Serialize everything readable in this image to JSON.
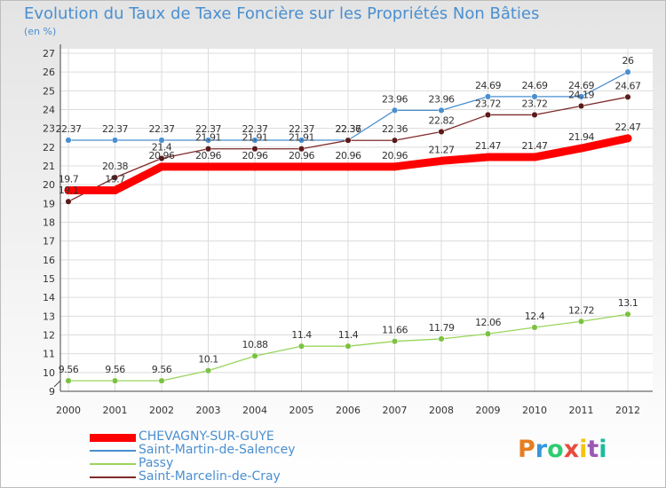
{
  "title": "Evolution du Taux de Taxe Foncière sur les Propriétés Non Bâties",
  "unit": "(en %)",
  "logo": {
    "text": "Proxiti",
    "letter_colors": [
      "#e67e22",
      "#3498db",
      "#2ecc71",
      "#e74c3c",
      "#f1c40f",
      "#9b59b6",
      "#1abc9c"
    ]
  },
  "chart_data": {
    "type": "line",
    "title": "Evolution du Taux de Taxe Foncière sur les Propriétés Non Bâties",
    "ylabel": "(en %)",
    "xlabel": "",
    "x": [
      "2000",
      "2001",
      "2002",
      "2003",
      "2004",
      "2005",
      "2006",
      "2007",
      "2008",
      "2009",
      "2010",
      "2011",
      "2012"
    ],
    "yticks": [
      9,
      10,
      11,
      12,
      13,
      14,
      15,
      16,
      17,
      18,
      19,
      20,
      21,
      22,
      23,
      24,
      25,
      26,
      27
    ],
    "ylim": [
      9,
      27
    ],
    "grid": true,
    "legend_position": "bottom-left",
    "series": [
      {
        "name": "Saint-Martin-de-Salencey",
        "color": "#4a8fd0",
        "marker": "#4a8fd0",
        "width": "thin",
        "values": [
          22.37,
          22.37,
          22.37,
          22.37,
          22.37,
          22.37,
          22.37,
          23.96,
          23.96,
          24.69,
          24.69,
          24.69,
          26
        ],
        "labels": [
          "22.37",
          "22.37",
          "22.37",
          "22.37",
          "22.37",
          "22.37",
          "22.37",
          "23.96",
          "23.96",
          "24.69",
          "24.69",
          "24.69",
          "26"
        ]
      },
      {
        "name": "Saint-Marcelin-de-Cray",
        "color": "#7f2a2a",
        "marker": "#5c1a1a",
        "width": "thin",
        "values": [
          19.1,
          20.38,
          21.4,
          21.91,
          21.91,
          21.91,
          22.36,
          22.36,
          22.82,
          23.72,
          23.72,
          24.19,
          24.67
        ],
        "labels": [
          "19.1",
          "20.38",
          "21.4",
          "21.91",
          "21.91",
          "21.91",
          "22.36",
          "22.36",
          "22.82",
          "23.72",
          "23.72",
          "24.19",
          "24.67"
        ]
      },
      {
        "name": "CHEVAGNY-SUR-GUYE",
        "color": "#ff0000",
        "marker": "#ff0000",
        "width": "thick",
        "values": [
          19.7,
          19.7,
          20.96,
          20.96,
          20.96,
          20.96,
          20.96,
          20.96,
          21.27,
          21.47,
          21.47,
          21.94,
          22.47
        ],
        "labels": [
          "19.7",
          "19.7",
          "20.96",
          "20.96",
          "20.96",
          "20.96",
          "20.96",
          "20.96",
          "21.27",
          "21.47",
          "21.47",
          "21.94",
          "22.47"
        ]
      },
      {
        "name": "Passy",
        "color": "#99d45a",
        "marker": "#7cc242",
        "width": "thin",
        "values": [
          9.56,
          9.56,
          9.56,
          10.1,
          10.88,
          11.4,
          11.4,
          11.66,
          11.79,
          12.06,
          12.4,
          12.72,
          13.1
        ],
        "labels": [
          "9.56",
          "9.56",
          "9.56",
          "10.1",
          "10.88",
          "11.4",
          "11.4",
          "11.66",
          "11.79",
          "12.06",
          "12.4",
          "12.72",
          "13.1"
        ]
      }
    ],
    "legend": [
      "CHEVAGNY-SUR-GUYE",
      "Saint-Martin-de-Salencey",
      "Passy",
      "Saint-Marcelin-de-Cray"
    ]
  }
}
